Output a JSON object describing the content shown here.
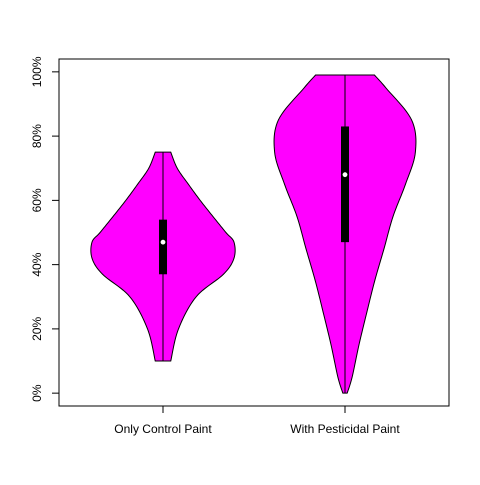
{
  "chart_data": {
    "type": "violin",
    "title": "",
    "xlabel": "",
    "ylabel": "",
    "ylim": [
      -0.04,
      1.04
    ],
    "yticks": [
      0,
      0.2,
      0.4,
      0.6,
      0.8,
      1.0
    ],
    "ytick_labels": [
      "0%",
      "20%",
      "40%",
      "60%",
      "80%",
      "100%"
    ],
    "categories": [
      "Only Control Paint",
      "With Pesticidal Paint"
    ],
    "violin_color": "#FF00FF",
    "box_color": "#000000",
    "median_color": "#FFFFFF",
    "grid": false,
    "series": [
      {
        "category": "Only Control Paint",
        "min": 0.1,
        "max": 0.75,
        "q1": 0.37,
        "q3": 0.54,
        "median": 0.47,
        "density_y": [
          0.1,
          0.2,
          0.3,
          0.37,
          0.42,
          0.47,
          0.5,
          0.55,
          0.6,
          0.65,
          0.7,
          0.75
        ],
        "density_w": [
          0.25,
          0.5,
          1.07,
          1.95,
          2.29,
          2.29,
          2.03,
          1.61,
          1.2,
          0.82,
          0.46,
          0.25
        ]
      },
      {
        "category": "With Pesticidal Paint",
        "min": 0.0,
        "max": 0.99,
        "q1": 0.47,
        "q3": 0.83,
        "median": 0.68,
        "density_y": [
          0.0,
          0.05,
          0.15,
          0.25,
          0.35,
          0.45,
          0.55,
          0.65,
          0.75,
          0.85,
          0.95,
          0.99
        ],
        "density_w": [
          0.07,
          0.23,
          0.45,
          0.7,
          0.96,
          1.26,
          1.55,
          1.95,
          2.27,
          2.15,
          1.32,
          0.95
        ]
      }
    ]
  }
}
